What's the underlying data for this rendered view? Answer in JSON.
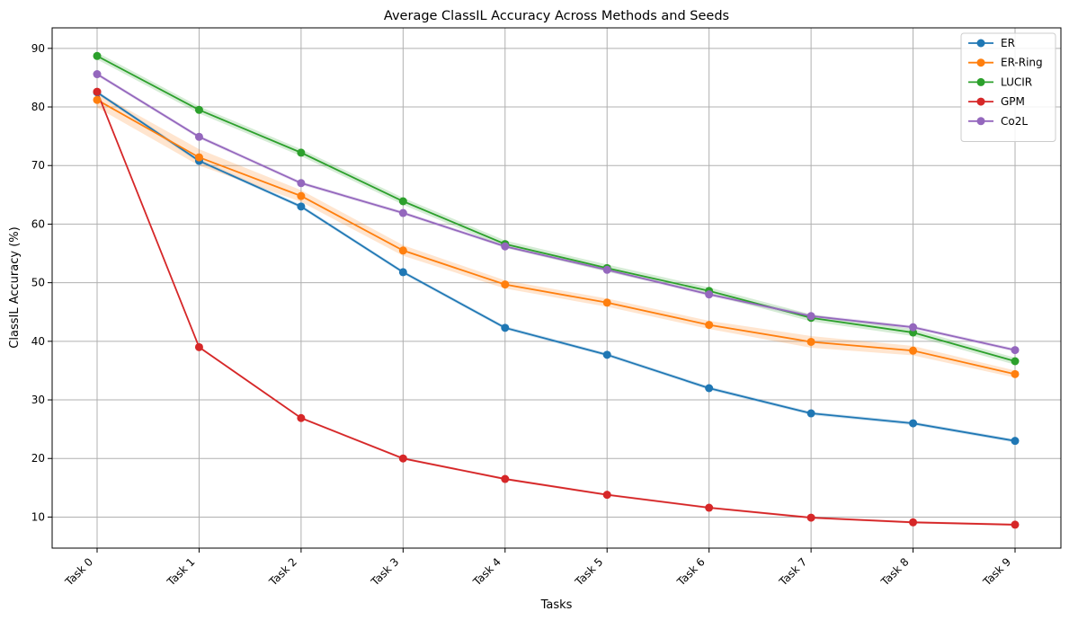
{
  "chart_data": {
    "type": "line",
    "title": "Average ClassIL Accuracy Across Methods and Seeds",
    "xlabel": "Tasks",
    "ylabel": "ClassIL Accuracy (%)",
    "categories": [
      "Task 0",
      "Task 1",
      "Task 2",
      "Task 3",
      "Task 4",
      "Task 5",
      "Task 6",
      "Task 7",
      "Task 8",
      "Task 9"
    ],
    "ylim": [
      4.7,
      93.5
    ],
    "yticks": [
      10,
      20,
      30,
      40,
      50,
      60,
      70,
      80,
      90
    ],
    "grid": true,
    "legend_position": "top-right",
    "series": [
      {
        "name": "ER",
        "color": "#1f77b4",
        "values": [
          82.5,
          70.8,
          63.0,
          51.8,
          42.3,
          37.7,
          32.0,
          27.7,
          26.0,
          23.0
        ],
        "band": 0.3
      },
      {
        "name": "ER-Ring",
        "color": "#ff7f0e",
        "values": [
          81.2,
          71.4,
          64.8,
          55.5,
          49.7,
          46.6,
          42.8,
          39.9,
          38.4,
          34.4
        ],
        "band_low": [
          79.9,
          70.0,
          63.8,
          54.6,
          49.0,
          45.9,
          42.1,
          38.9,
          37.6,
          33.8
        ],
        "band_high": [
          82.5,
          72.8,
          65.8,
          56.4,
          50.4,
          47.3,
          43.5,
          40.9,
          39.2,
          35.0
        ]
      },
      {
        "name": "LUCIR",
        "color": "#2ca02c",
        "values": [
          88.7,
          79.5,
          72.2,
          63.9,
          56.6,
          52.5,
          48.6,
          44.0,
          41.5,
          36.6
        ],
        "band": 0.6
      },
      {
        "name": "GPM",
        "color": "#d62728",
        "values": [
          82.6,
          39.0,
          26.9,
          20.0,
          16.5,
          13.8,
          11.6,
          9.9,
          9.1,
          8.7
        ],
        "band": 0.2
      },
      {
        "name": "Co2L",
        "color": "#9467bd",
        "values": [
          85.6,
          74.9,
          67.0,
          61.9,
          56.2,
          52.2,
          48.0,
          44.3,
          42.4,
          38.5
        ],
        "band": 0.3
      }
    ]
  }
}
